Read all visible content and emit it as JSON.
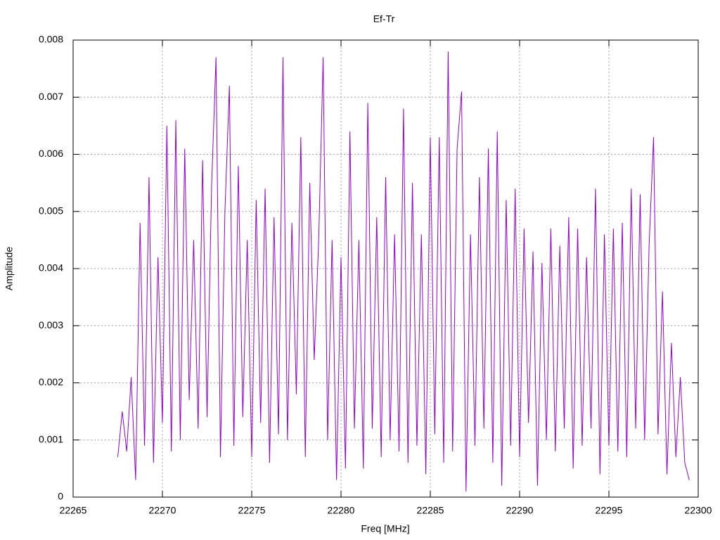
{
  "chart_data": {
    "type": "line",
    "title": "Ef-Tr",
    "x_label": "Freq [MHz]",
    "y_label": "Amplitude",
    "color": "#9400d3",
    "grid": true,
    "xlim": [
      22265,
      22300
    ],
    "xticks": [
      22265,
      22270,
      22275,
      22280,
      22285,
      22290,
      22295,
      22300
    ],
    "ylim": [
      0,
      0.008
    ],
    "yticks": [
      0,
      0.001,
      0.002,
      0.003,
      0.004,
      0.005,
      0.006,
      0.007,
      0.008
    ],
    "x": [
      22267.5,
      22267.75,
      22268,
      22268.25,
      22268.5,
      22268.75,
      22269,
      22269.25,
      22269.5,
      22269.75,
      22270,
      22270.25,
      22270.5,
      22270.75,
      22271,
      22271.25,
      22271.5,
      22271.75,
      22272,
      22272.25,
      22272.5,
      22272.75,
      22273,
      22273.25,
      22273.5,
      22273.75,
      22274,
      22274.25,
      22274.5,
      22274.75,
      22275,
      22275.25,
      22275.5,
      22275.75,
      22276,
      22276.25,
      22276.5,
      22276.75,
      22277,
      22277.25,
      22277.5,
      22277.75,
      22278,
      22278.25,
      22278.5,
      22278.75,
      22279,
      22279.25,
      22279.5,
      22279.75,
      22280,
      22280.25,
      22280.5,
      22280.75,
      22281,
      22281.25,
      22281.5,
      22281.75,
      22282,
      22282.25,
      22282.5,
      22282.75,
      22283,
      22283.25,
      22283.5,
      22283.75,
      22284,
      22284.25,
      22284.5,
      22284.75,
      22285,
      22285.25,
      22285.5,
      22285.75,
      22286,
      22286.25,
      22286.5,
      22286.75,
      22287,
      22287.25,
      22287.5,
      22287.75,
      22288,
      22288.25,
      22288.5,
      22288.75,
      22289,
      22289.25,
      22289.5,
      22289.75,
      22290,
      22290.25,
      22290.5,
      22290.75,
      22291,
      22291.25,
      22291.5,
      22291.75,
      22292,
      22292.25,
      22292.5,
      22292.75,
      22293,
      22293.25,
      22293.5,
      22293.75,
      22294,
      22294.25,
      22294.5,
      22294.75,
      22295,
      22295.25,
      22295.5,
      22295.75,
      22296,
      22296.25,
      22296.5,
      22296.75,
      22297,
      22297.25,
      22297.5,
      22297.75,
      22298,
      22298.25,
      22298.5,
      22298.75,
      22299,
      22299.25,
      22299.5
    ],
    "values": [
      0.0007,
      0.0015,
      0.0008,
      0.0021,
      0.0003,
      0.0048,
      0.0009,
      0.0056,
      0.0006,
      0.0042,
      0.0013,
      0.0065,
      0.0008,
      0.0066,
      0.001,
      0.0061,
      0.0017,
      0.0045,
      0.0012,
      0.0059,
      0.0014,
      0.0054,
      0.0077,
      0.0007,
      0.005,
      0.0072,
      0.0009,
      0.0058,
      0.0014,
      0.0045,
      0.0007,
      0.0052,
      0.0013,
      0.0054,
      0.0006,
      0.0049,
      0.0011,
      0.0077,
      0.001,
      0.0048,
      0.0018,
      0.0063,
      0.0007,
      0.0055,
      0.0024,
      0.0045,
      0.0077,
      0.001,
      0.0045,
      0.0003,
      0.0042,
      0.0005,
      0.0064,
      0.0012,
      0.0045,
      0.0005,
      0.0069,
      0.0012,
      0.0049,
      0.0007,
      0.0056,
      0.001,
      0.0046,
      0.0008,
      0.0068,
      0.0006,
      0.0055,
      0.0009,
      0.0046,
      0.0004,
      0.0063,
      0.0011,
      0.0063,
      0.0006,
      0.0078,
      0.0008,
      0.0061,
      0.0071,
      0.0001,
      0.0046,
      0.0009,
      0.0056,
      0.0012,
      0.0061,
      0.0006,
      0.0064,
      0.0002,
      0.0052,
      0.0009,
      0.0054,
      0.0007,
      0.0047,
      0.0013,
      0.0043,
      0.0002,
      0.0041,
      0.001,
      0.0047,
      0.0008,
      0.0044,
      0.0012,
      0.0049,
      0.0005,
      0.0047,
      0.0009,
      0.0042,
      0.0012,
      0.0054,
      0.0004,
      0.0046,
      0.0009,
      0.0047,
      0.0008,
      0.0048,
      0.0007,
      0.0054,
      0.0012,
      0.0053,
      0.001,
      0.0044,
      0.0063,
      0.0011,
      0.0036,
      0.0004,
      0.0027,
      0.0007,
      0.0021,
      0.0006,
      0.0003
    ]
  }
}
